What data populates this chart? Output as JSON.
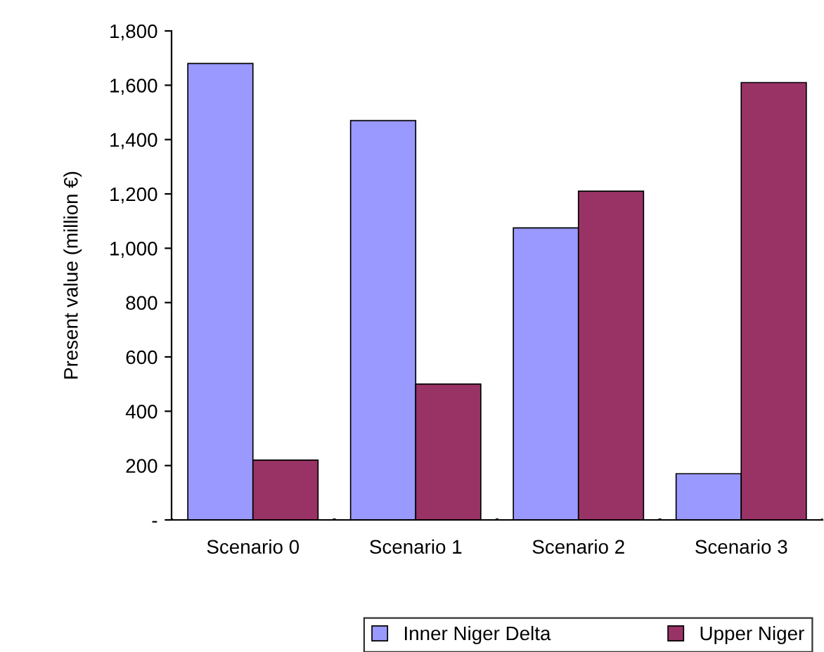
{
  "chart_data": {
    "type": "bar",
    "ylabel": "Present value (million €)",
    "categories": [
      "Scenario 0",
      "Scenario 1",
      "Scenario 2",
      "Scenario 3"
    ],
    "series": [
      {
        "name": "Inner Niger Delta",
        "color": "#9999ff",
        "values": [
          1680,
          1470,
          1075,
          170
        ]
      },
      {
        "name": "Upper Niger",
        "color": "#993366",
        "values": [
          220,
          500,
          1210,
          1610
        ]
      }
    ],
    "ylim": [
      0,
      1800
    ],
    "yticks": [
      {
        "value": 0,
        "label": "-"
      },
      {
        "value": 200,
        "label": "200"
      },
      {
        "value": 400,
        "label": "400"
      },
      {
        "value": 600,
        "label": "600"
      },
      {
        "value": 800,
        "label": "800"
      },
      {
        "value": 1000,
        "label": "1,000"
      },
      {
        "value": 1200,
        "label": "1,200"
      },
      {
        "value": 1400,
        "label": "1,400"
      },
      {
        "value": 1600,
        "label": "1,600"
      },
      {
        "value": 1800,
        "label": "1,800"
      }
    ],
    "grid": false,
    "legend": "bottom"
  }
}
